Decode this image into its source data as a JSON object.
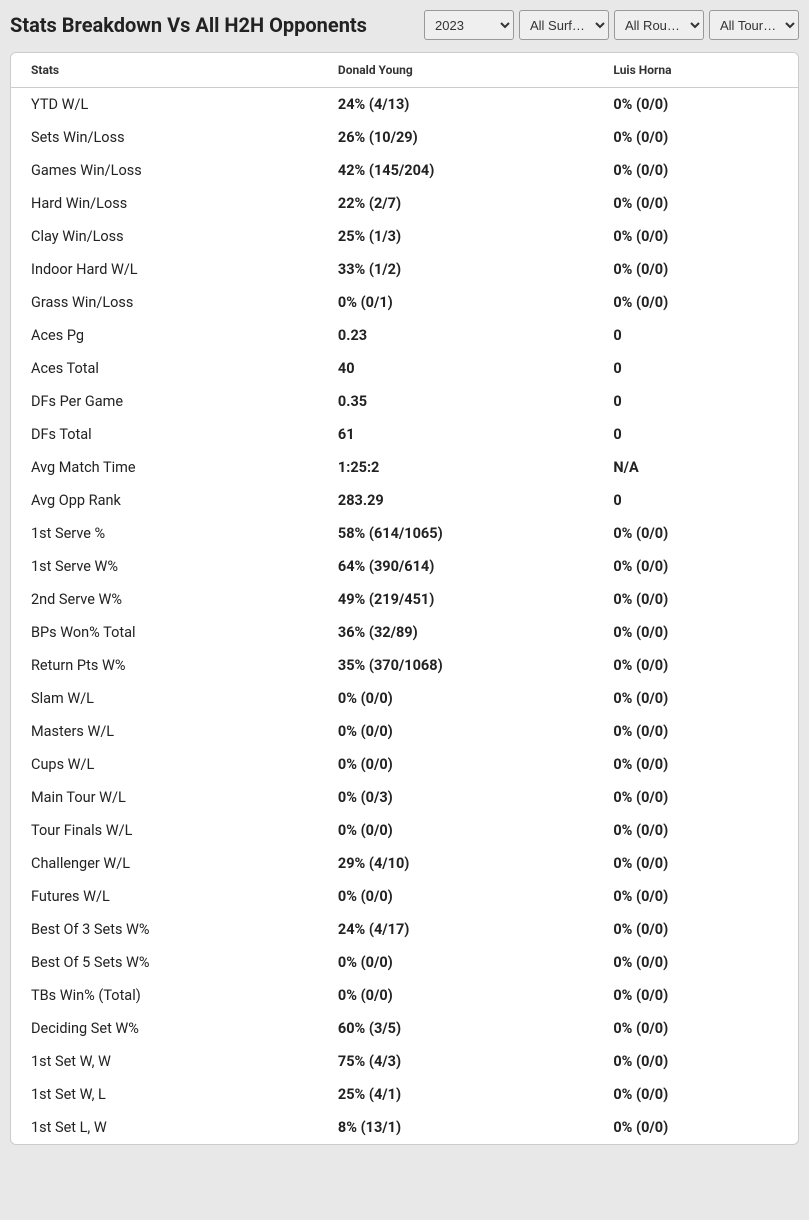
{
  "header": {
    "title": "Stats Breakdown Vs All H2H Opponents"
  },
  "filters": {
    "year": {
      "selected": "2023",
      "options": [
        "2023"
      ]
    },
    "surface": {
      "selected": "All Surf…",
      "options": [
        "All Surf…"
      ]
    },
    "round": {
      "selected": "All Rou…",
      "options": [
        "All Rou…"
      ]
    },
    "tour": {
      "selected": "All Tour…",
      "options": [
        "All Tour…"
      ]
    }
  },
  "table": {
    "columns": [
      "Stats",
      "Donald Young",
      "Luis Horna"
    ],
    "rows": [
      [
        "YTD W/L",
        "24% (4/13)",
        "0% (0/0)"
      ],
      [
        "Sets Win/Loss",
        "26% (10/29)",
        "0% (0/0)"
      ],
      [
        "Games Win/Loss",
        "42% (145/204)",
        "0% (0/0)"
      ],
      [
        "Hard Win/Loss",
        "22% (2/7)",
        "0% (0/0)"
      ],
      [
        "Clay Win/Loss",
        "25% (1/3)",
        "0% (0/0)"
      ],
      [
        "Indoor Hard W/L",
        "33% (1/2)",
        "0% (0/0)"
      ],
      [
        "Grass Win/Loss",
        "0% (0/1)",
        "0% (0/0)"
      ],
      [
        "Aces Pg",
        "0.23",
        "0"
      ],
      [
        "Aces Total",
        "40",
        "0"
      ],
      [
        "DFs Per Game",
        "0.35",
        "0"
      ],
      [
        "DFs Total",
        "61",
        "0"
      ],
      [
        "Avg Match Time",
        "1:25:2",
        "N/A"
      ],
      [
        "Avg Opp Rank",
        "283.29",
        "0"
      ],
      [
        "1st Serve %",
        "58% (614/1065)",
        "0% (0/0)"
      ],
      [
        "1st Serve W%",
        "64% (390/614)",
        "0% (0/0)"
      ],
      [
        "2nd Serve W%",
        "49% (219/451)",
        "0% (0/0)"
      ],
      [
        "BPs Won% Total",
        "36% (32/89)",
        "0% (0/0)"
      ],
      [
        "Return Pts W%",
        "35% (370/1068)",
        "0% (0/0)"
      ],
      [
        "Slam W/L",
        "0% (0/0)",
        "0% (0/0)"
      ],
      [
        "Masters W/L",
        "0% (0/0)",
        "0% (0/0)"
      ],
      [
        "Cups W/L",
        "0% (0/0)",
        "0% (0/0)"
      ],
      [
        "Main Tour W/L",
        "0% (0/3)",
        "0% (0/0)"
      ],
      [
        "Tour Finals W/L",
        "0% (0/0)",
        "0% (0/0)"
      ],
      [
        "Challenger W/L",
        "29% (4/10)",
        "0% (0/0)"
      ],
      [
        "Futures W/L",
        "0% (0/0)",
        "0% (0/0)"
      ],
      [
        "Best Of 3 Sets W%",
        "24% (4/17)",
        "0% (0/0)"
      ],
      [
        "Best Of 5 Sets W%",
        "0% (0/0)",
        "0% (0/0)"
      ],
      [
        "TBs Win% (Total)",
        "0% (0/0)",
        "0% (0/0)"
      ],
      [
        "Deciding Set W%",
        "60% (3/5)",
        "0% (0/0)"
      ],
      [
        "1st Set W, W",
        "75% (4/3)",
        "0% (0/0)"
      ],
      [
        "1st Set W, L",
        "25% (4/1)",
        "0% (0/0)"
      ],
      [
        "1st Set L, W",
        "8% (13/1)",
        "0% (0/0)"
      ]
    ]
  },
  "styling": {
    "background_color": "#e8e8e8",
    "table_background": "#ffffff",
    "border_color": "#cccccc",
    "title_fontsize": 20,
    "header_fontsize": 12,
    "cell_fontsize": 14.5,
    "title_color": "#222222",
    "text_color": "#222222"
  }
}
